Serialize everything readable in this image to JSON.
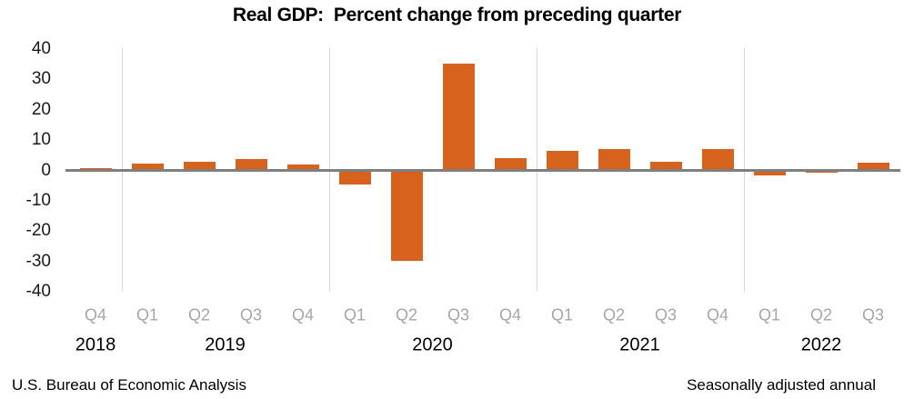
{
  "title": "Real GDP:  Percent change from preceding quarter",
  "footer": {
    "source": "U.S. Bureau of Economic Analysis",
    "note": "Seasonally adjusted annual"
  },
  "colors": {
    "bar": "#D6621E",
    "zero_line": "#7F7F7F",
    "year_divider": "#D9D9D9",
    "quarter_label": "#A6A6A6",
    "year_label": "#000000",
    "axis_tick_label": "#1A1A1A"
  },
  "chart_data": {
    "type": "bar",
    "title": "Real GDP:  Percent change from preceding quarter",
    "xlabel": "",
    "ylabel": "",
    "ylim": [
      -40,
      40
    ],
    "yticks": [
      40,
      30,
      20,
      10,
      0,
      -10,
      -20,
      -30,
      -40
    ],
    "grid": "vertical dividers between year groups only",
    "legend": "none",
    "categories": [
      "2018 Q4",
      "2019 Q1",
      "2019 Q2",
      "2019 Q3",
      "2019 Q4",
      "2020 Q1",
      "2020 Q2",
      "2020 Q3",
      "2020 Q4",
      "2021 Q1",
      "2021 Q2",
      "2021 Q3",
      "2021 Q4",
      "2022 Q1",
      "2022 Q2",
      "2022 Q3"
    ],
    "values": [
      0.7,
      2.2,
      2.7,
      3.6,
      1.8,
      -4.6,
      -29.9,
      35.3,
      3.9,
      6.3,
      7.0,
      2.7,
      7.0,
      -1.6,
      -0.6,
      2.6
    ],
    "year_groups": [
      {
        "year": "2018",
        "quarters": [
          "Q4"
        ]
      },
      {
        "year": "2019",
        "quarters": [
          "Q1",
          "Q2",
          "Q3",
          "Q4"
        ]
      },
      {
        "year": "2020",
        "quarters": [
          "Q1",
          "Q2",
          "Q3",
          "Q4"
        ]
      },
      {
        "year": "2021",
        "quarters": [
          "Q1",
          "Q2",
          "Q3",
          "Q4"
        ]
      },
      {
        "year": "2022",
        "quarters": [
          "Q1",
          "Q2",
          "Q3"
        ]
      }
    ]
  }
}
